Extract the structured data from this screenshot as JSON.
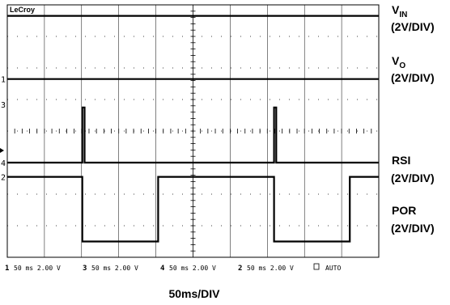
{
  "chart_data": {
    "type": "line",
    "brand": "LeCroy",
    "grid": true,
    "time_per_div_ms": 50,
    "x_divisions": 10,
    "y_divisions": 8,
    "xlim_ms": [
      0,
      500
    ],
    "xlabel": "50ms/DIV",
    "series": [
      {
        "name_main": "V",
        "name_sub": "IN",
        "scale": "(2V/DIV)",
        "marker": "",
        "x": [
          0,
          500
        ],
        "y": [
          0.35,
          0.35
        ]
      },
      {
        "name_main": "V",
        "name_sub": "O",
        "scale": "(2V/DIV)",
        "marker": "1",
        "x": [
          0,
          500
        ],
        "y": [
          2.35,
          2.35
        ]
      },
      {
        "name_main": "RSI",
        "name_sub": "",
        "scale": "(2V/DIV)",
        "marker": "4",
        "x": [
          0,
          101,
          101,
          104,
          104,
          359,
          359,
          362,
          362,
          500
        ],
        "y": [
          5.0,
          5.0,
          3.25,
          3.25,
          5.0,
          5.0,
          3.25,
          3.25,
          5.0,
          5.0
        ]
      },
      {
        "name_main": "POR",
        "name_sub": "",
        "scale": "(2V/DIV)",
        "marker": "2",
        "x": [
          0,
          101,
          101,
          203,
          203,
          359,
          359,
          461,
          461,
          500
        ],
        "y": [
          5.45,
          5.45,
          7.5,
          7.5,
          5.45,
          5.45,
          7.5,
          7.5,
          5.45,
          5.45
        ]
      }
    ],
    "extra_markers": [
      "3"
    ],
    "status_bar": [
      {
        "ch": "1",
        "text": "50 ms 2.00 V"
      },
      {
        "ch": "3",
        "text": "50 ms 2.00 V"
      },
      {
        "ch": "4",
        "text": "50 ms 2.00 V"
      },
      {
        "ch": "2",
        "text": "50 ms 2.00 V"
      }
    ],
    "trigger_mode": "AUTO"
  }
}
